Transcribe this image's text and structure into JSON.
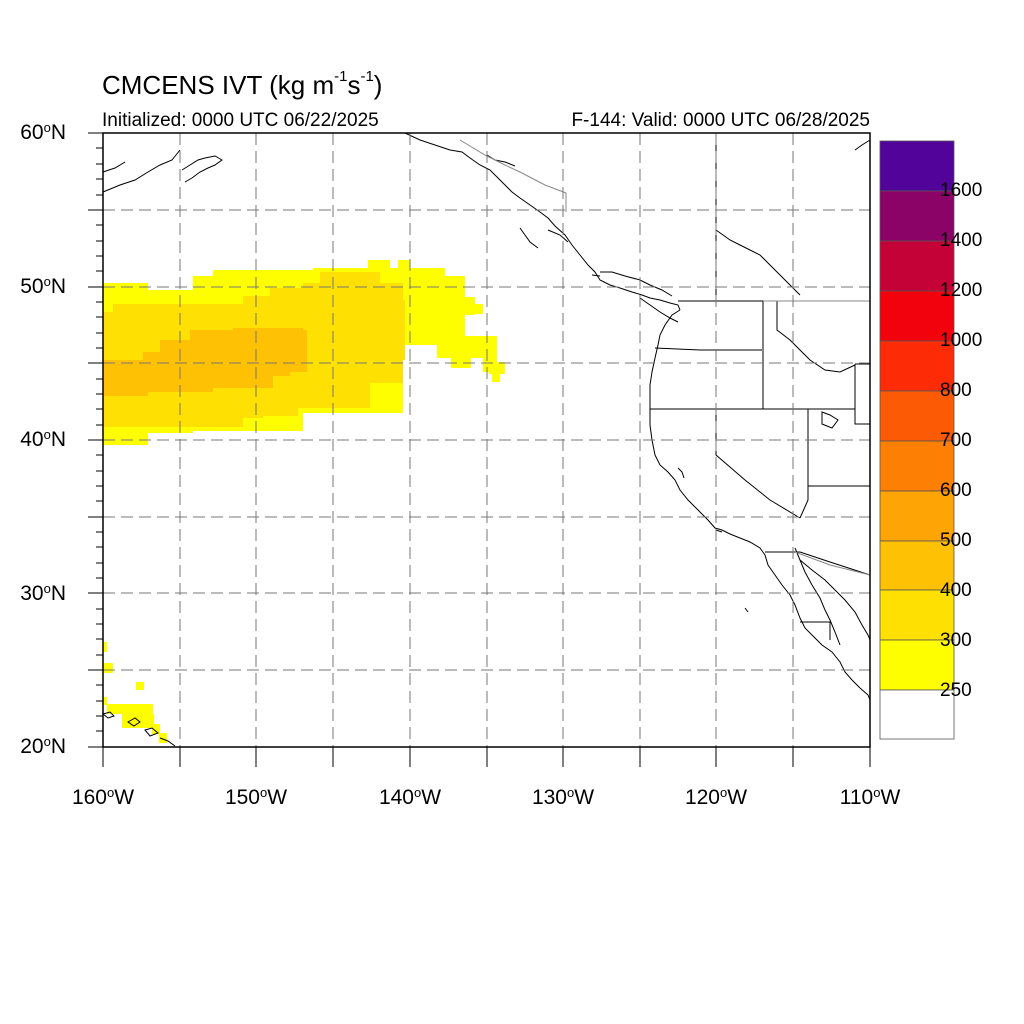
{
  "title": {
    "main": "CMCENS IVT (kg m",
    "exp1": "-1",
    "mid": "s",
    "exp2": "-1",
    "close": ")"
  },
  "initialized": "Initialized: 0000 UTC 06/22/2025",
  "valid": "F-144: Valid: 0000 UTC 06/28/2025",
  "lat_labels": [
    {
      "value": "60",
      "hemi": "N"
    },
    {
      "value": "50",
      "hemi": "N"
    },
    {
      "value": "40",
      "hemi": "N"
    },
    {
      "value": "30",
      "hemi": "N"
    },
    {
      "value": "20",
      "hemi": "N"
    }
  ],
  "lon_labels": [
    {
      "value": "160",
      "hemi": "W"
    },
    {
      "value": "150",
      "hemi": "W"
    },
    {
      "value": "140",
      "hemi": "W"
    },
    {
      "value": "130",
      "hemi": "W"
    },
    {
      "value": "120",
      "hemi": "W"
    },
    {
      "value": "110",
      "hemi": "W"
    }
  ],
  "degree_symbol": "o",
  "map_extent": {
    "lon_min": -160,
    "lon_max": -110,
    "lat_min": 20,
    "lat_max": 60
  },
  "colorbar": {
    "labels": [
      "1600",
      "1400",
      "1200",
      "1000",
      "800",
      "700",
      "600",
      "500",
      "400",
      "300",
      "250"
    ],
    "colors": [
      "#52039a",
      "#8c0368",
      "#c40238",
      "#f2020c",
      "#fe2c06",
      "#fd5a05",
      "#fd8005",
      "#fea404",
      "#fec103",
      "#fee102",
      "#fefe01",
      "#ffffff"
    ]
  }
}
